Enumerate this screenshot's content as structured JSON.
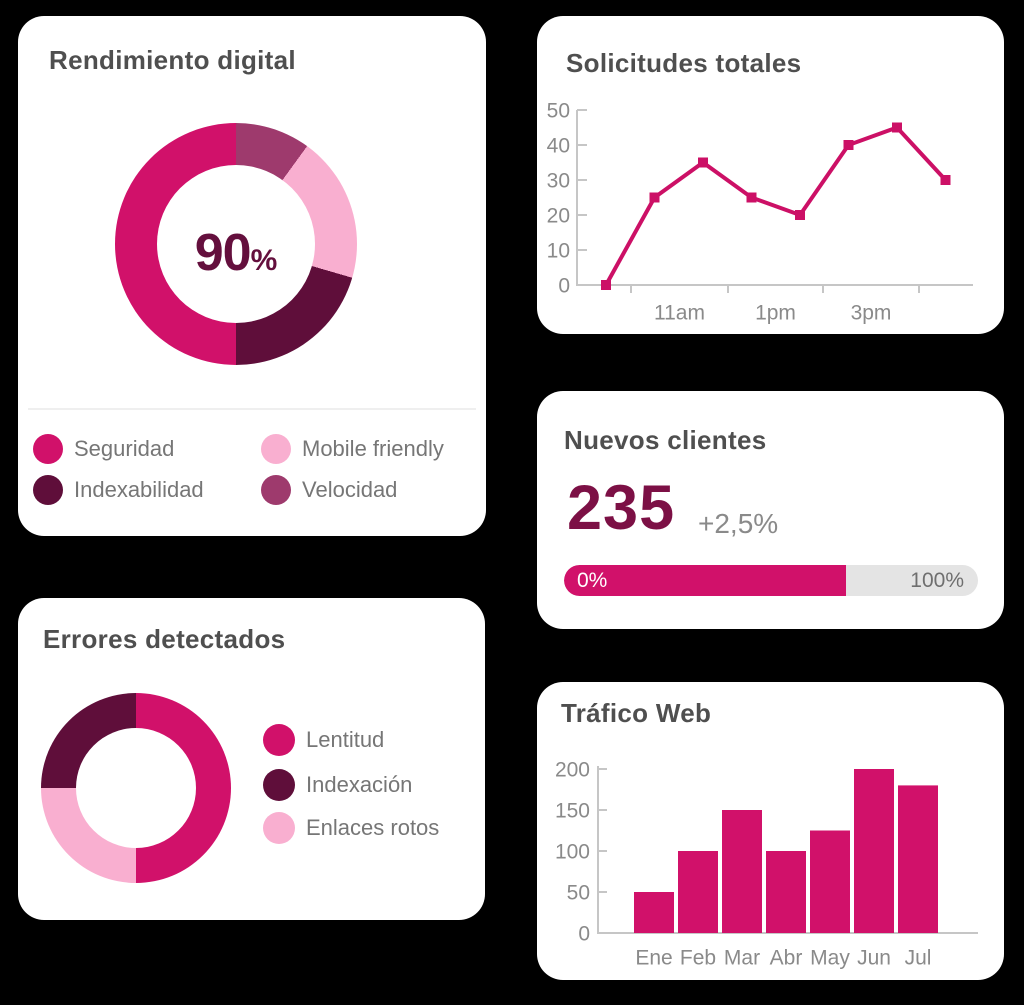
{
  "page": {
    "background": "#000000",
    "card_background": "#ffffff"
  },
  "colors": {
    "accent_magenta": "#d1116a",
    "line_magenta": "#cc1066",
    "dark_maroon": "#5f0e3a",
    "light_pink": "#f9afd0",
    "mid_purple": "#9e3a6d",
    "title_text": "#4f4f4f",
    "legend_text": "#767676",
    "axis_text": "#8a8a8a",
    "axis_line": "#c6c6c6",
    "donut_center_text": "#640f3d",
    "kpi_value_text": "#7c1045",
    "progress_track": "#e4e4e4"
  },
  "chart_data": [
    {
      "type": "pie",
      "subtype": "donut",
      "title": "Rendimiento digital",
      "center_value": "90",
      "center_unit": "%",
      "start": "top",
      "direction": "clockwise",
      "legend_position": "bottom",
      "slices": [
        {
          "label": "Velocidad",
          "value": 10,
          "color": "#9e3a6d"
        },
        {
          "label": "Mobile friendly",
          "value": 19.5,
          "color": "#f9afd0"
        },
        {
          "label": "Indexabilidad",
          "value": 20.5,
          "color": "#5f0e3a"
        },
        {
          "label": "Seguridad",
          "value": 50,
          "color": "#d1116a"
        }
      ]
    },
    {
      "type": "line",
      "title": "Solicitudes totales",
      "values": [
        0,
        25,
        35,
        25,
        20,
        40,
        45,
        30
      ],
      "x_tick_labels": [
        "11am",
        "1pm",
        "3pm"
      ],
      "ylim": [
        0,
        50
      ],
      "yticks": [
        0,
        10,
        20,
        30,
        40,
        50
      ],
      "marker": "square",
      "color": "#cc1066",
      "grid": false,
      "legend_position": "none"
    },
    {
      "type": "progress",
      "title": "Nuevos clientes",
      "value": "235",
      "delta": "+2,5%",
      "progress_pct": 68,
      "min_label": "0%",
      "max_label": "100%",
      "bar_color": "#d1116a"
    },
    {
      "type": "pie",
      "subtype": "donut",
      "title": "Errores detectados",
      "start": "top",
      "direction": "clockwise",
      "legend_position": "right",
      "slices": [
        {
          "label": "Lentitud",
          "value": 50,
          "color": "#d1116a"
        },
        {
          "label": "Enlaces rotos",
          "value": 25,
          "color": "#f9afd0"
        },
        {
          "label": "Indexación",
          "value": 25,
          "color": "#5f0e3a"
        }
      ]
    },
    {
      "type": "bar",
      "title": "Tráfico Web",
      "categories": [
        "Ene",
        "Feb",
        "Mar",
        "Abr",
        "May",
        "Jun",
        "Jul"
      ],
      "values": [
        50,
        100,
        150,
        100,
        125,
        200,
        180
      ],
      "ylim": [
        0,
        200
      ],
      "yticks": [
        0,
        50,
        100,
        150,
        200
      ],
      "color": "#d1116a",
      "grid": false,
      "legend_position": "none"
    }
  ]
}
